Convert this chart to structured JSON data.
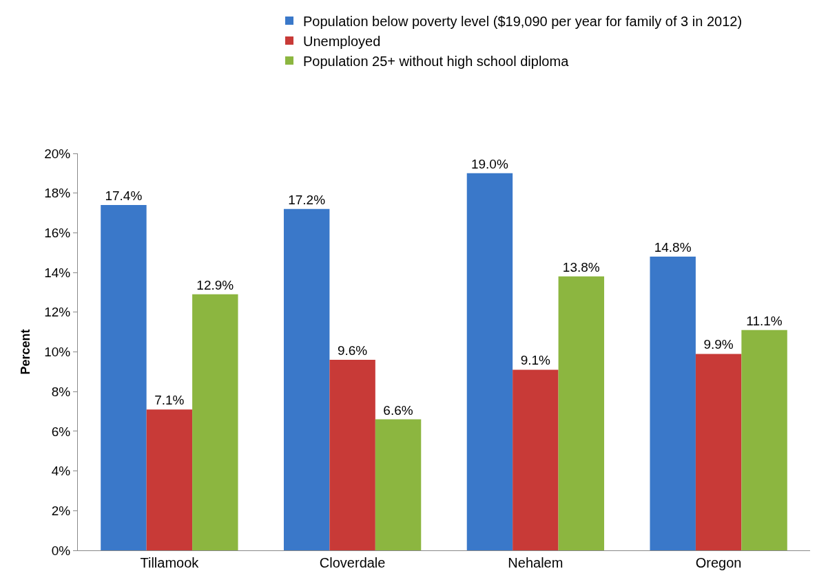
{
  "chart_data": {
    "type": "bar",
    "ylabel": "Percent",
    "categories": [
      "Tillamook",
      "Cloverdale",
      "Nehalem",
      "Oregon"
    ],
    "series": [
      {
        "name": "Population below poverty level ($19,090 per year for family of 3 in 2012)",
        "color": "#3a78c9",
        "values": [
          17.4,
          17.2,
          19.0,
          14.8
        ],
        "value_labels": [
          "17.4%",
          "17.2%",
          "19.0%",
          "14.8%"
        ]
      },
      {
        "name": "Unemployed",
        "color": "#c83a37",
        "values": [
          7.1,
          9.6,
          9.1,
          9.9
        ],
        "value_labels": [
          "7.1%",
          "9.6%",
          "9.1%",
          "9.9%"
        ]
      },
      {
        "name": "Population 25+ without high school diploma",
        "color": "#8cb640",
        "values": [
          12.9,
          6.6,
          13.8,
          11.1
        ],
        "value_labels": [
          "12.9%",
          "6.6%",
          "13.8%",
          "11.1%"
        ]
      }
    ],
    "ylim": [
      0,
      20
    ],
    "yticks": [
      {
        "value": 0,
        "label": "0%"
      },
      {
        "value": 2,
        "label": "2%"
      },
      {
        "value": 4,
        "label": "4%"
      },
      {
        "value": 6,
        "label": "6%"
      },
      {
        "value": 8,
        "label": "8%"
      },
      {
        "value": 10,
        "label": "10%"
      },
      {
        "value": 12,
        "label": "12%"
      },
      {
        "value": 14,
        "label": "14%"
      },
      {
        "value": 16,
        "label": "16%"
      },
      {
        "value": 18,
        "label": "18%"
      },
      {
        "value": 20,
        "label": "20%"
      }
    ],
    "legend": "top"
  }
}
